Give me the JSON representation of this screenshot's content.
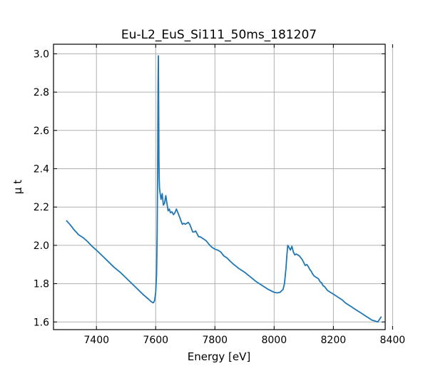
{
  "chart_data": {
    "type": "line",
    "title": "Eu-L2_EuS_Si111_50ms_181207",
    "xlabel": "Energy [eV]",
    "ylabel": "μ t",
    "xlim": [
      7255,
      8375
    ],
    "ylim": [
      1.56,
      3.05
    ],
    "xticks": [
      7400,
      7600,
      7800,
      8000,
      8200,
      8400
    ],
    "yticks": [
      1.6,
      1.8,
      2.0,
      2.2,
      2.4,
      2.6,
      2.8,
      3.0
    ],
    "xtick_labels": [
      "7400",
      "7600",
      "7800",
      "8000",
      "8200",
      "8400"
    ],
    "ytick_labels": [
      "1.6",
      "1.8",
      "2.0",
      "2.2",
      "2.4",
      "2.6",
      "2.8",
      "3.0"
    ],
    "grid": true,
    "tick_direction": "in",
    "series": [
      {
        "color": "#1f77b4",
        "x": [
          7298,
          7310,
          7325,
          7340,
          7355,
          7370,
          7385,
          7400,
          7420,
          7440,
          7460,
          7480,
          7500,
          7520,
          7540,
          7560,
          7575,
          7585,
          7592,
          7596,
          7600,
          7603,
          7605,
          7607,
          7608,
          7609,
          7610,
          7611,
          7612,
          7613,
          7615,
          7618,
          7622,
          7626,
          7630,
          7634,
          7638,
          7642,
          7646,
          7650,
          7655,
          7660,
          7665,
          7670,
          7675,
          7680,
          7685,
          7690,
          7695,
          7700,
          7705,
          7710,
          7715,
          7720,
          7725,
          7730,
          7735,
          7740,
          7745,
          7750,
          7760,
          7770,
          7780,
          7790,
          7800,
          7810,
          7820,
          7830,
          7840,
          7850,
          7860,
          7880,
          7900,
          7920,
          7940,
          7960,
          7980,
          8000,
          8010,
          8020,
          8030,
          8035,
          8040,
          8043,
          8046,
          8050,
          8055,
          8060,
          8065,
          8070,
          8075,
          8080,
          8085,
          8090,
          8095,
          8100,
          8105,
          8110,
          8115,
          8120,
          8125,
          8130,
          8135,
          8140,
          8145,
          8150,
          8155,
          8160,
          8165,
          8170,
          8175,
          8180,
          8190,
          8200,
          8210,
          8220,
          8230,
          8240,
          8250,
          8260,
          8270,
          8280,
          8290,
          8300,
          8310,
          8320,
          8330,
          8340,
          8350,
          8362
        ],
        "y": [
          2.13,
          2.11,
          2.08,
          2.055,
          2.04,
          2.02,
          1.995,
          1.975,
          1.945,
          1.915,
          1.885,
          1.86,
          1.83,
          1.8,
          1.77,
          1.74,
          1.72,
          1.706,
          1.7,
          1.71,
          1.75,
          1.85,
          2.05,
          2.45,
          2.85,
          2.99,
          2.75,
          2.45,
          2.35,
          2.3,
          2.27,
          2.24,
          2.27,
          2.21,
          2.22,
          2.26,
          2.22,
          2.18,
          2.19,
          2.17,
          2.175,
          2.16,
          2.17,
          2.19,
          2.17,
          2.15,
          2.13,
          2.11,
          2.115,
          2.11,
          2.115,
          2.12,
          2.11,
          2.09,
          2.07,
          2.07,
          2.075,
          2.06,
          2.045,
          2.045,
          2.035,
          2.025,
          2.005,
          1.99,
          1.98,
          1.975,
          1.965,
          1.945,
          1.935,
          1.92,
          1.905,
          1.88,
          1.86,
          1.835,
          1.81,
          1.79,
          1.77,
          1.755,
          1.752,
          1.755,
          1.77,
          1.8,
          1.88,
          1.95,
          2.0,
          1.99,
          1.975,
          1.995,
          1.965,
          1.95,
          1.955,
          1.95,
          1.945,
          1.935,
          1.925,
          1.91,
          1.895,
          1.9,
          1.89,
          1.875,
          1.865,
          1.85,
          1.84,
          1.835,
          1.83,
          1.825,
          1.81,
          1.805,
          1.79,
          1.785,
          1.775,
          1.765,
          1.755,
          1.745,
          1.735,
          1.725,
          1.715,
          1.7,
          1.69,
          1.68,
          1.67,
          1.66,
          1.65,
          1.64,
          1.63,
          1.62,
          1.61,
          1.605,
          1.6,
          1.628
        ]
      }
    ]
  }
}
